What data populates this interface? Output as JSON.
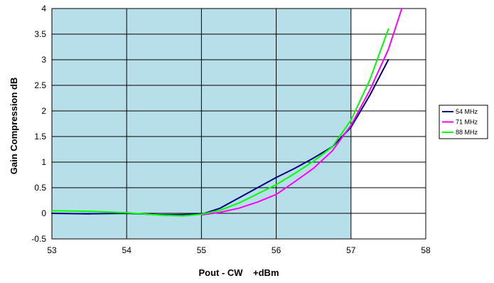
{
  "chart_data": {
    "type": "line",
    "title": "",
    "xlabel": "Pout - CW    +dBm",
    "ylabel": "Gain Compression dB",
    "xlim": [
      53,
      58
    ],
    "ylim": [
      -0.5,
      4
    ],
    "x_ticks": [
      53,
      54,
      55,
      56,
      57,
      58
    ],
    "y_ticks": [
      -0.5,
      0,
      0.5,
      1,
      1.5,
      2,
      2.5,
      3,
      3.5,
      4
    ],
    "y_tick_labels": [
      "-0.5",
      "0",
      "0.5",
      "1",
      "1.5",
      "2",
      "2.5",
      "3",
      "3.5",
      "4"
    ],
    "grid": true,
    "shaded_region": {
      "x_from": 53,
      "x_to": 57,
      "color": "#b7dfe9"
    },
    "legend_position": "right",
    "series": [
      {
        "name": "54 MHz",
        "color": "#000080",
        "points": [
          [
            53,
            0
          ],
          [
            53.5,
            -0.01
          ],
          [
            54,
            0
          ],
          [
            54.5,
            -0.03
          ],
          [
            55,
            -0.02
          ],
          [
            55.25,
            0.1
          ],
          [
            55.5,
            0.3
          ],
          [
            55.75,
            0.5
          ],
          [
            56,
            0.7
          ],
          [
            56.25,
            0.88
          ],
          [
            56.5,
            1.08
          ],
          [
            56.75,
            1.3
          ],
          [
            57,
            1.68
          ],
          [
            57.25,
            2.3
          ],
          [
            57.5,
            3.0
          ]
        ]
      },
      {
        "name": "71 MHz",
        "color": "#ff00ff",
        "points": [
          [
            55,
            -0.03
          ],
          [
            55.25,
            0.02
          ],
          [
            55.5,
            0.1
          ],
          [
            55.75,
            0.22
          ],
          [
            56,
            0.37
          ],
          [
            56.25,
            0.62
          ],
          [
            56.5,
            0.88
          ],
          [
            56.75,
            1.22
          ],
          [
            57,
            1.72
          ],
          [
            57.25,
            2.4
          ],
          [
            57.5,
            3.2
          ],
          [
            57.68,
            4.0
          ]
        ]
      },
      {
        "name": "88 MHz",
        "color": "#00ff00",
        "points": [
          [
            53,
            0.05
          ],
          [
            53.5,
            0.04
          ],
          [
            54,
            0.01
          ],
          [
            54.5,
            -0.04
          ],
          [
            54.75,
            -0.05
          ],
          [
            55,
            -0.02
          ],
          [
            55.25,
            0.06
          ],
          [
            55.5,
            0.2
          ],
          [
            55.75,
            0.38
          ],
          [
            56,
            0.56
          ],
          [
            56.25,
            0.78
          ],
          [
            56.5,
            1.02
          ],
          [
            56.75,
            1.3
          ],
          [
            57,
            1.82
          ],
          [
            57.25,
            2.6
          ],
          [
            57.5,
            3.6
          ]
        ]
      }
    ]
  }
}
